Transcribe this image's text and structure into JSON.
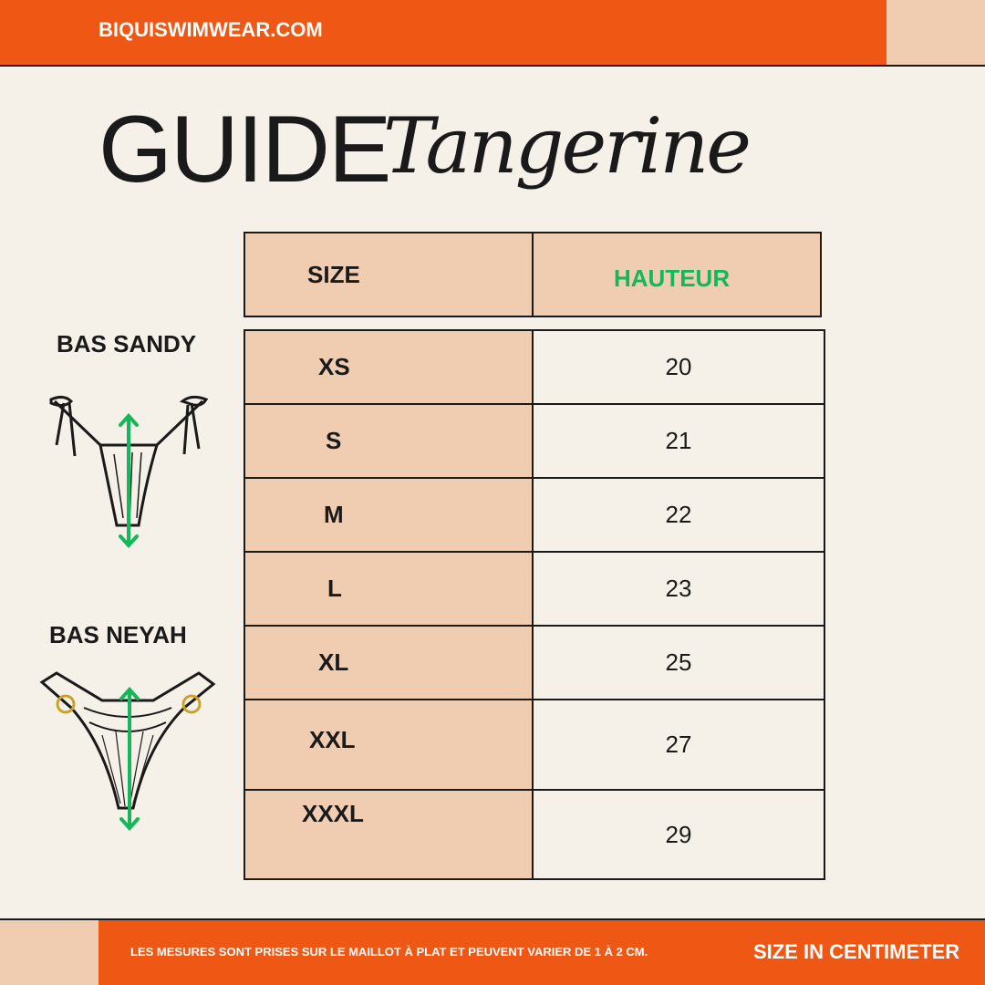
{
  "header": {
    "site": "BIQUISWIMWEAR.COM"
  },
  "title": {
    "guide": "GUIDE",
    "collection": "Tangerine"
  },
  "table": {
    "headers": [
      "SIZE",
      "HAUTEUR"
    ],
    "rows": [
      {
        "size": "XS",
        "value": "20"
      },
      {
        "size": "S",
        "value": "21"
      },
      {
        "size": "M",
        "value": "22"
      },
      {
        "size": "L",
        "value": "23"
      },
      {
        "size": "XL",
        "value": "25"
      },
      {
        "size": "XXL",
        "value": "27"
      },
      {
        "size": "XXXL",
        "value": "29"
      }
    ]
  },
  "products": [
    {
      "label": "BAS SANDY",
      "icon": "bikini-tie-bottom-with-height-arrow"
    },
    {
      "label": "BAS NEYAH",
      "icon": "bikini-ring-bottom-with-height-arrow"
    }
  ],
  "footer": {
    "note": "LES MESURES SONT PRISES SUR LE MAILLOT À PLAT ET PEUVENT VARIER DE 1 À 2 CM.",
    "unit": "SIZE IN CENTIMETER"
  },
  "colors": {
    "orange": "#EE5714",
    "peach": "#F0CCB0",
    "background": "#F5F1E8",
    "accent_green": "#12B85A"
  }
}
